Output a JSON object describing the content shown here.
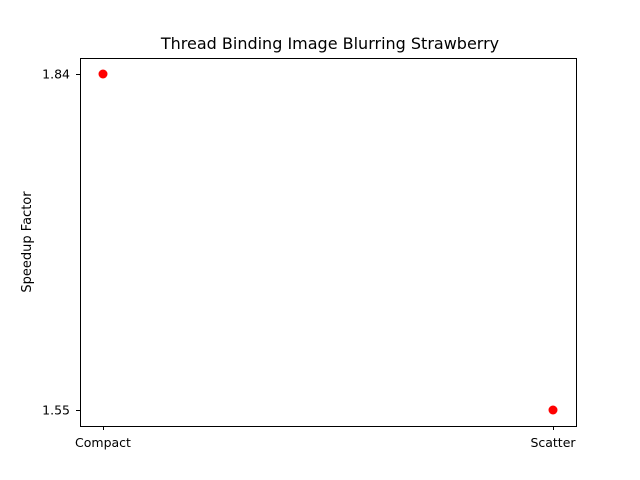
{
  "chart_data": {
    "type": "scatter",
    "title": "Thread Binding Image Blurring Strawberry",
    "xlabel": "",
    "ylabel": "Speedup Factor",
    "categories": [
      "Compact",
      "Scatter"
    ],
    "series": [
      {
        "values": [
          1.84,
          1.55
        ],
        "color": "#ff0000"
      }
    ],
    "y_ticks": [
      1.55,
      1.84
    ],
    "y_tick_labels": [
      "1.55",
      "1.84"
    ],
    "grid": false,
    "legend": "none"
  }
}
